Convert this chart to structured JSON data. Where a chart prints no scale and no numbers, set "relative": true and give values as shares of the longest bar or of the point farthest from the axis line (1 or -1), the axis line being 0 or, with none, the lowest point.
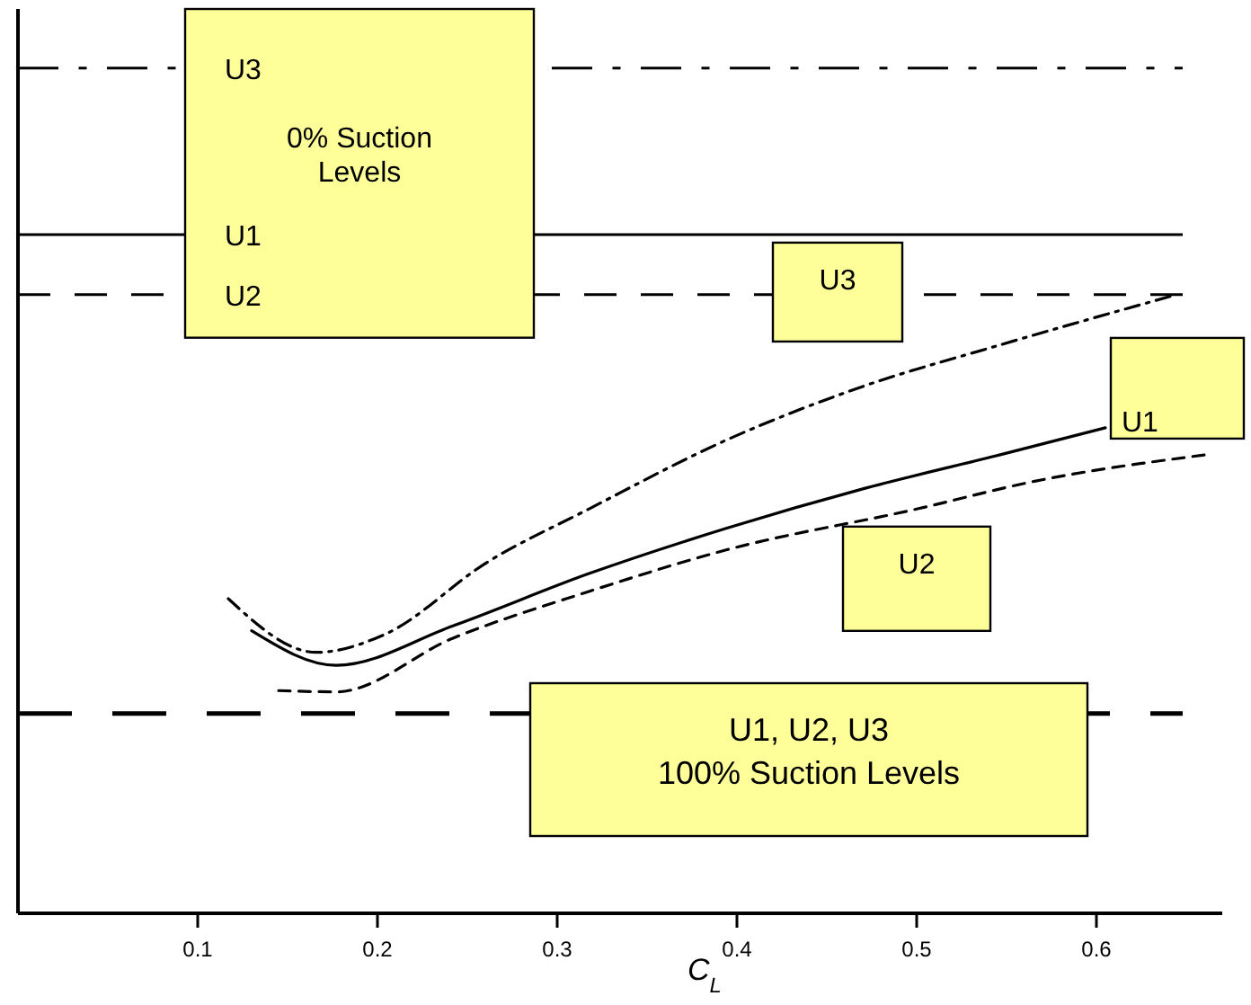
{
  "chart_data": {
    "type": "line",
    "relative": true,
    "xlabel": "C$_{L}$",
    "xlim": [
      0,
      0.67
    ],
    "xticks": [
      0.1,
      0.2,
      0.3,
      0.4,
      0.5,
      0.6
    ],
    "tick_labels": "x",
    "grid": false,
    "series": [
      {
        "name": "U3",
        "color": "#000000",
        "line_style": "dashdot",
        "x": [
          0.117,
          0.166,
          0.204,
          0.261,
          0.318,
          0.394,
          0.47,
          0.546,
          0.641
        ],
        "values": [
          0.51,
          0.423,
          0.452,
          0.569,
          0.656,
          0.767,
          0.854,
          0.921,
          1.0
        ]
      },
      {
        "name": "U1",
        "color": "#000000",
        "line_style": "solid",
        "x": [
          0.13,
          0.177,
          0.242,
          0.318,
          0.394,
          0.47,
          0.546,
          0.605
        ],
        "values": [
          0.458,
          0.402,
          0.466,
          0.551,
          0.624,
          0.688,
          0.743,
          0.787
        ]
      },
      {
        "name": "U2",
        "color": "#000000",
        "line_style": "dashed",
        "x": [
          0.145,
          0.177,
          0.242,
          0.318,
          0.394,
          0.501,
          0.565,
          0.66
        ],
        "values": [
          0.361,
          0.359,
          0.446,
          0.522,
          0.589,
          0.656,
          0.7,
          0.743
        ]
      }
    ],
    "ref_lines": [
      {
        "axis": "y",
        "value": 1.37,
        "label": "U3",
        "line_style": "dashdot",
        "color": "#000000"
      },
      {
        "axis": "y",
        "value": 1.1,
        "label": "U1",
        "line_style": "solid",
        "color": "#000000"
      },
      {
        "axis": "y",
        "value": 1.003,
        "label": "U2",
        "line_style": "dashed",
        "color": "#000000"
      },
      {
        "axis": "y",
        "value": 0.324,
        "line_style": "dashed",
        "color": "#000000"
      }
    ],
    "annotations": [
      "0% Suction Levels",
      "U1, U2, U3\n100% Suction Levels"
    ]
  }
}
